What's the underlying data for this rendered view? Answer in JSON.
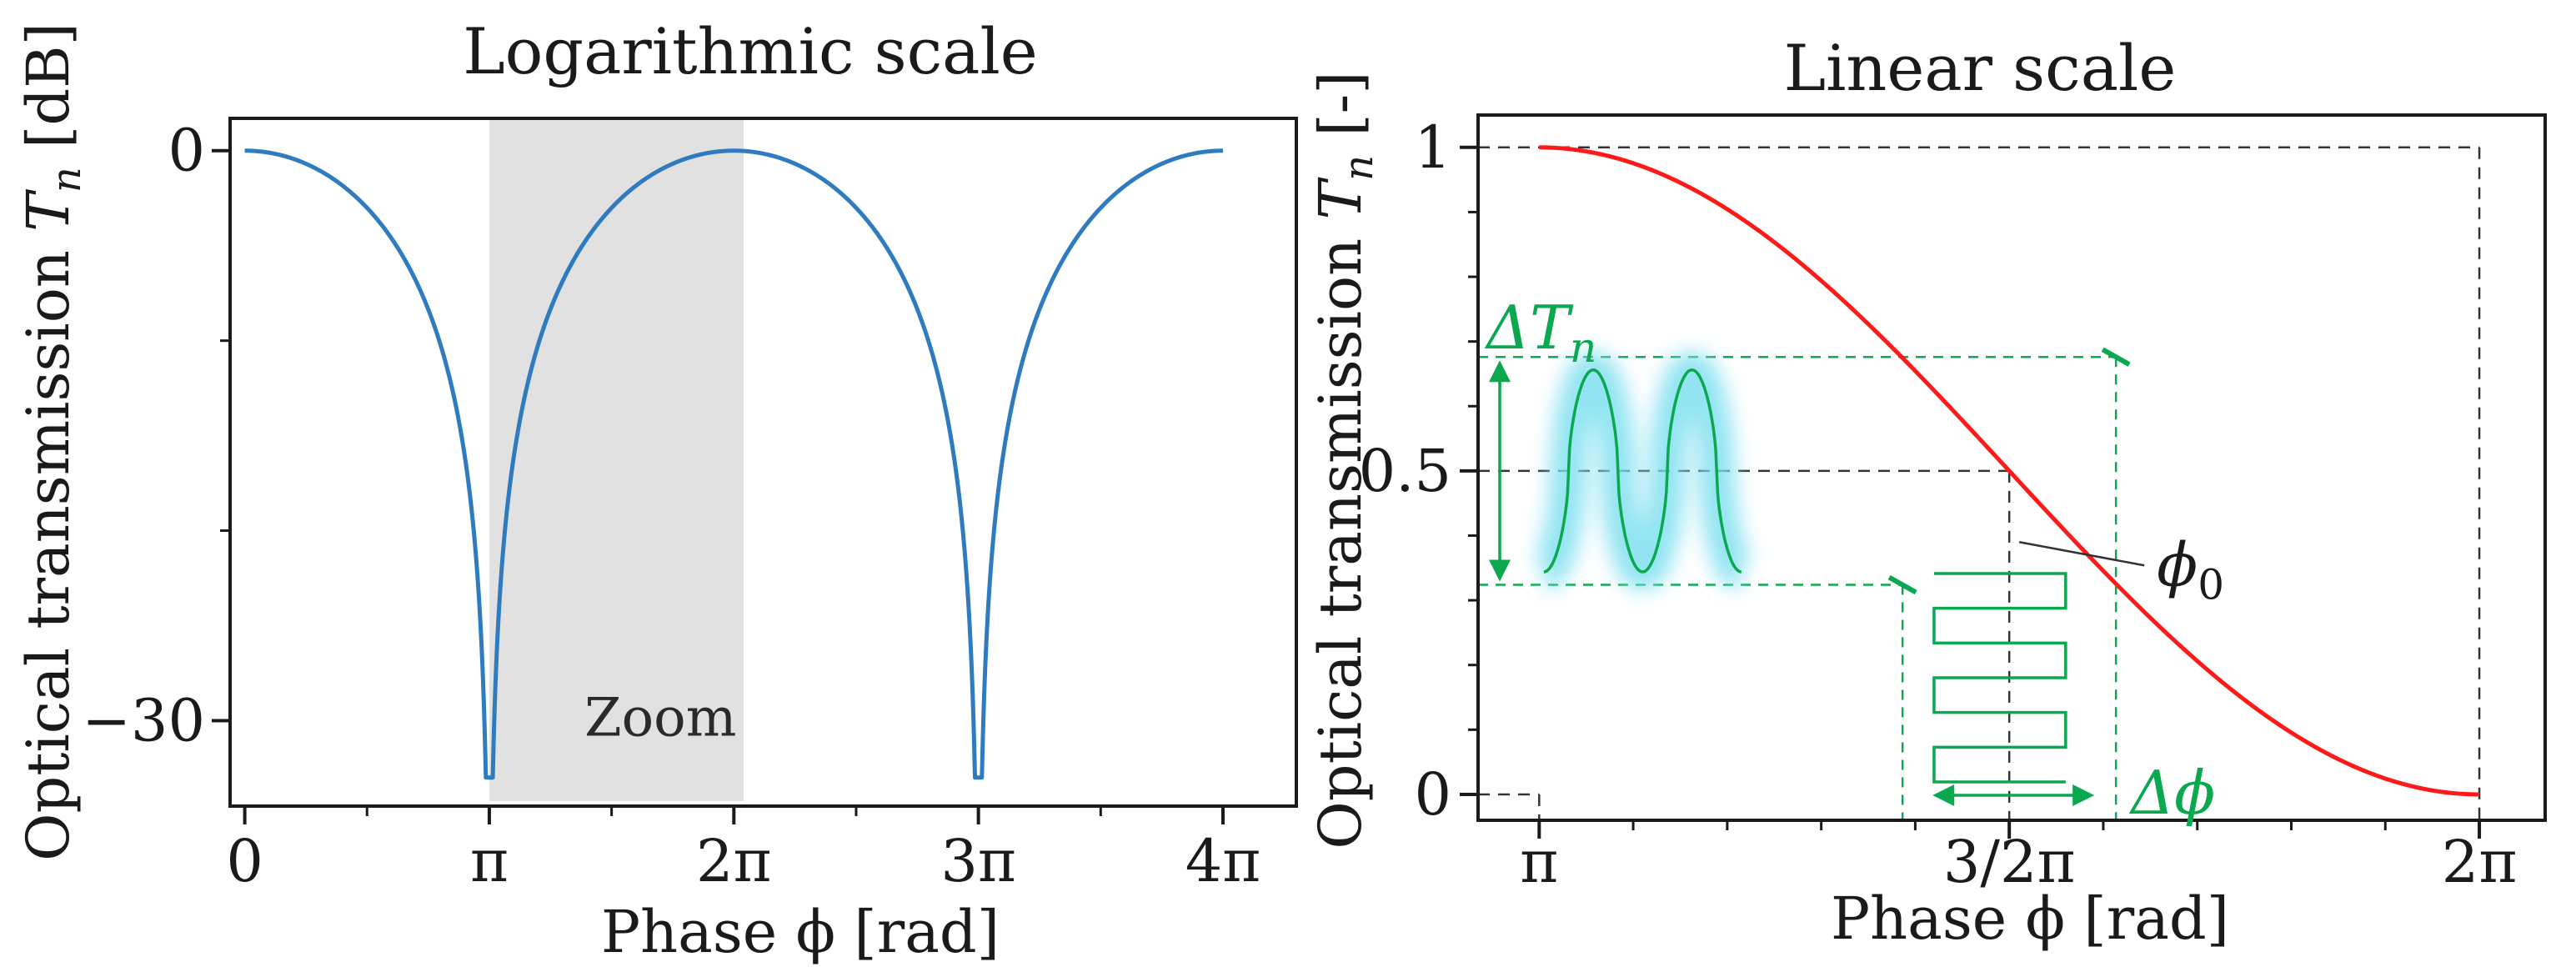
{
  "colors": {
    "log_curve": "#2e7bbf",
    "lin_curve": "#ff1a1a",
    "annotation": "#0aa84f",
    "glow": "#7fe0f0",
    "zoom_band": "#e1e1e1",
    "axis": "#1a1a1a",
    "guide": "#333333"
  },
  "chart_data": [
    {
      "type": "line",
      "title": "Logarithmic scale",
      "xlabel": "Phase ϕ [rad]",
      "ylabel_main": "Optical transmission ",
      "ylabel_symbol": "T",
      "ylabel_sub": "n",
      "ylabel_unit": " [dB]",
      "x_range_pi": [
        0,
        4
      ],
      "xlim_pi": [
        -0.06,
        4.3
      ],
      "ylim": [
        -34.5,
        1.7
      ],
      "xticks": [
        {
          "value_pi": 0,
          "label": "0"
        },
        {
          "value_pi": 1,
          "label": "π"
        },
        {
          "value_pi": 2,
          "label": "2π"
        },
        {
          "value_pi": 3,
          "label": "3π"
        },
        {
          "value_pi": 4,
          "label": "4π"
        }
      ],
      "minor_xticks_pi": [
        0.5,
        1.5,
        2.5,
        3.5
      ],
      "yticks": [
        {
          "value": 0,
          "label": "0"
        },
        {
          "value": -30,
          "label": "−30"
        }
      ],
      "minor_yticks": [
        -10,
        -20
      ],
      "formula": "10·log10(cos²(ϕ/2)), notches at π and 3π",
      "dip_min_db": -33,
      "zoom_band_pi": [
        1,
        2.04
      ],
      "zoom_label": "Zoom"
    },
    {
      "type": "line",
      "title": "Linear scale",
      "xlabel": "Phase ϕ [rad]",
      "ylabel_main": "Optical transmission ",
      "ylabel_symbol": "T",
      "ylabel_sub": "n",
      "ylabel_unit": " [-]",
      "x_range_pi": [
        1,
        2
      ],
      "xlim_pi": [
        0.935,
        2.07
      ],
      "ylim": [
        -0.04,
        1.05
      ],
      "xticks": [
        {
          "value_pi": 1,
          "label": "π"
        },
        {
          "value_pi": 1.5,
          "label": "3/2π"
        },
        {
          "value_pi": 2,
          "label": "2π"
        }
      ],
      "minor_xticks_pi": [
        1.1,
        1.2,
        1.3,
        1.4,
        1.6,
        1.7,
        1.8,
        1.9
      ],
      "yticks": [
        {
          "value": 0,
          "label": "0"
        },
        {
          "value": 0.5,
          "label": "0.5"
        },
        {
          "value": 1,
          "label": "1"
        }
      ],
      "minor_yticks": [
        0.1,
        0.2,
        0.3,
        0.4,
        0.6,
        0.7,
        0.8,
        0.9
      ],
      "formula": "sin²(ϕ/2)",
      "operating_point_pi": 1.5,
      "operating_point_T": 0.5,
      "operating_point_symbol": "ϕ",
      "operating_point_sub": "0",
      "modulation_range_pi": [
        1.3865,
        1.6135
      ],
      "transmission_swing": [
        0.3239,
        0.6761
      ],
      "delta_T_prefix": "ΔT",
      "delta_T_sub": "n",
      "delta_phi_label": "Δϕ"
    }
  ]
}
